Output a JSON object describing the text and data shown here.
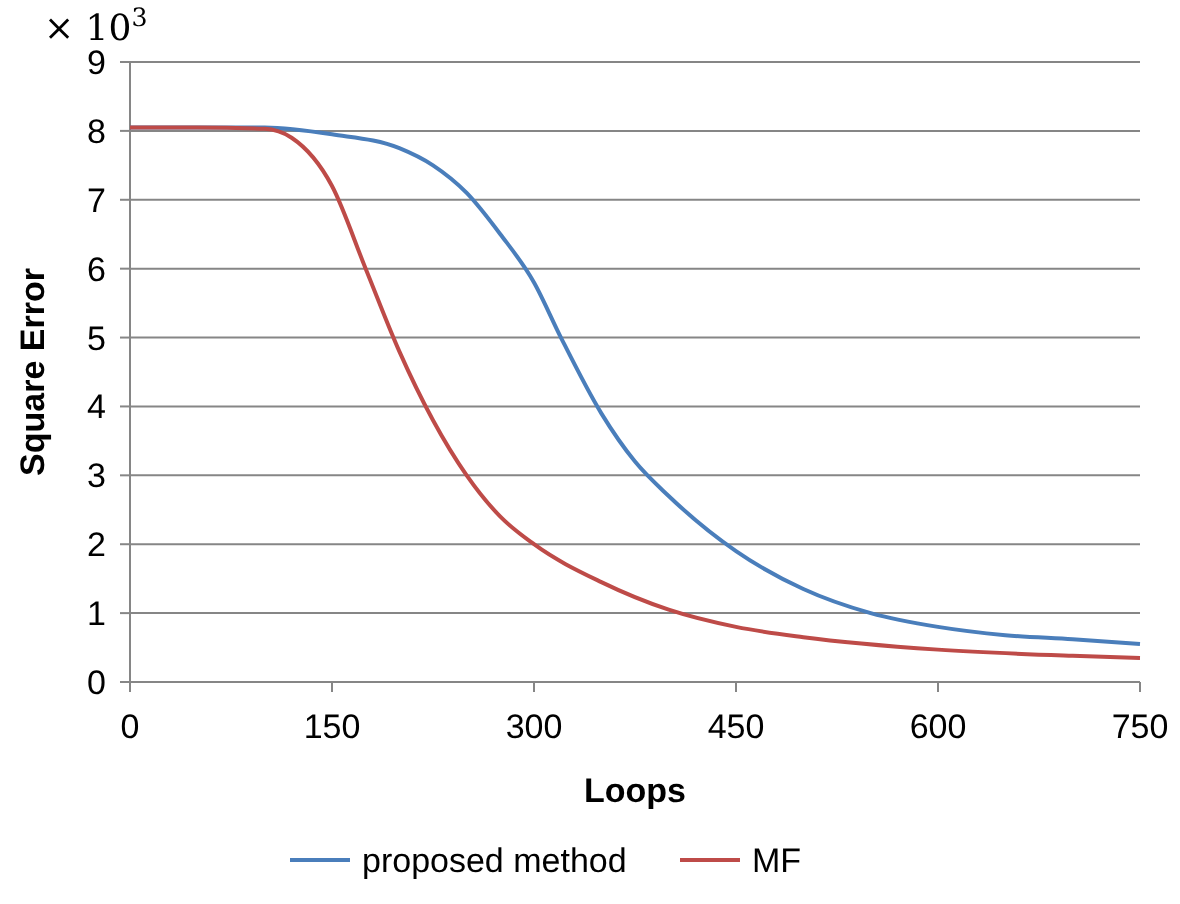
{
  "chart_data": {
    "type": "line",
    "xlabel": "Loops",
    "ylabel": "Square Error",
    "annotations": [
      "× 10$^{3}$"
    ],
    "xlim": [
      0,
      750
    ],
    "xticks": [
      0,
      150,
      300,
      450,
      600,
      750
    ],
    "ylim": [
      0,
      9
    ],
    "yticks": [
      0,
      1,
      2,
      3,
      4,
      5,
      6,
      7,
      8,
      9
    ],
    "grid": "y",
    "legend": "bottom",
    "marker": "none",
    "line_style": "solid",
    "series": [
      {
        "name": "proposed method",
        "color": "#4a7ebb",
        "x": [
          0,
          50,
          100,
          150,
          200,
          225,
          250,
          275,
          300,
          320,
          350,
          375,
          400,
          450,
          500,
          550,
          600,
          650,
          700,
          750
        ],
        "values": [
          8.05,
          8.05,
          8.05,
          7.95,
          7.75,
          7.5,
          7.1,
          6.5,
          5.8,
          5.0,
          3.9,
          3.2,
          2.7,
          1.9,
          1.35,
          1.0,
          0.8,
          0.68,
          0.62,
          0.55
        ]
      },
      {
        "name": "MF",
        "color": "#be4b48",
        "x": [
          0,
          50,
          100,
          120,
          150,
          175,
          200,
          225,
          250,
          275,
          300,
          350,
          400,
          450,
          500,
          600,
          700,
          750
        ],
        "values": [
          8.05,
          8.05,
          8.03,
          7.9,
          7.2,
          6.0,
          4.8,
          3.8,
          3.0,
          2.4,
          2.0,
          1.45,
          1.05,
          0.8,
          0.65,
          0.47,
          0.38,
          0.35
        ]
      }
    ]
  }
}
